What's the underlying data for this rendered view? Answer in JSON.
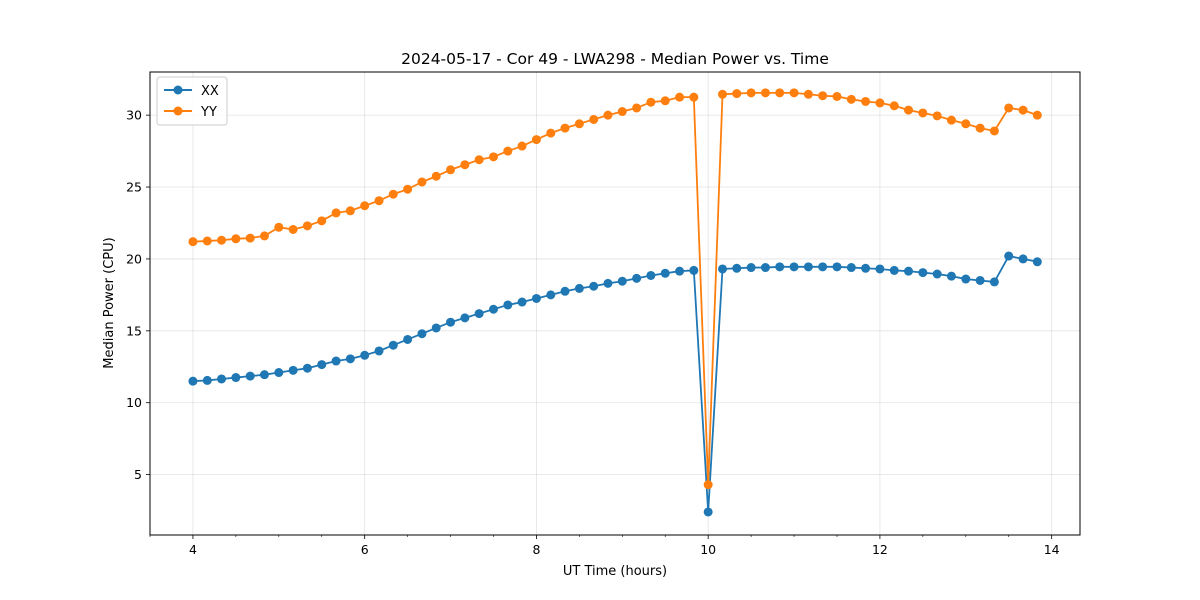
{
  "chart_data": {
    "type": "line",
    "title": "2024-05-17 - Cor 49 - LWA298 - Median Power vs. Time",
    "xlabel": "UT Time (hours)",
    "ylabel": "Median Power (CPU)",
    "xlim": [
      3.5,
      14.33
    ],
    "ylim": [
      0.8,
      33.0
    ],
    "xticks": [
      4,
      6,
      8,
      10,
      12,
      14
    ],
    "yticks": [
      5,
      10,
      15,
      20,
      25,
      30
    ],
    "grid": true,
    "legend": "upper-left",
    "series": [
      {
        "name": "XX",
        "color": "#1f77b4",
        "marker": "circle",
        "x": [
          4.0,
          4.167,
          4.333,
          4.5,
          4.667,
          4.833,
          5.0,
          5.167,
          5.333,
          5.5,
          5.667,
          5.833,
          6.0,
          6.167,
          6.333,
          6.5,
          6.667,
          6.833,
          7.0,
          7.167,
          7.333,
          7.5,
          7.667,
          7.833,
          8.0,
          8.167,
          8.333,
          8.5,
          8.667,
          8.833,
          9.0,
          9.167,
          9.333,
          9.5,
          9.667,
          9.833,
          10.0,
          10.167,
          10.333,
          10.5,
          10.667,
          10.833,
          11.0,
          11.167,
          11.333,
          11.5,
          11.667,
          11.833,
          12.0,
          12.167,
          12.333,
          12.5,
          12.667,
          12.833,
          13.0,
          13.167,
          13.333,
          13.5,
          13.667,
          13.833
        ],
        "y": [
          11.5,
          11.55,
          11.65,
          11.75,
          11.85,
          11.95,
          12.1,
          12.25,
          12.4,
          12.65,
          12.9,
          13.05,
          13.3,
          13.6,
          14.0,
          14.4,
          14.8,
          15.2,
          15.6,
          15.9,
          16.2,
          16.5,
          16.8,
          17.0,
          17.25,
          17.5,
          17.75,
          17.95,
          18.1,
          18.3,
          18.45,
          18.65,
          18.85,
          19.0,
          19.15,
          19.2,
          2.4,
          19.3,
          19.35,
          19.4,
          19.4,
          19.45,
          19.45,
          19.45,
          19.45,
          19.45,
          19.4,
          19.35,
          19.3,
          19.2,
          19.15,
          19.05,
          18.95,
          18.8,
          18.6,
          18.5,
          18.4,
          20.2,
          20.0,
          19.8
        ]
      },
      {
        "name": "YY",
        "color": "#ff7f0e",
        "marker": "circle",
        "x": [
          4.0,
          4.167,
          4.333,
          4.5,
          4.667,
          4.833,
          5.0,
          5.167,
          5.333,
          5.5,
          5.667,
          5.833,
          6.0,
          6.167,
          6.333,
          6.5,
          6.667,
          6.833,
          7.0,
          7.167,
          7.333,
          7.5,
          7.667,
          7.833,
          8.0,
          8.167,
          8.333,
          8.5,
          8.667,
          8.833,
          9.0,
          9.167,
          9.333,
          9.5,
          9.667,
          9.833,
          10.0,
          10.167,
          10.333,
          10.5,
          10.667,
          10.833,
          11.0,
          11.167,
          11.333,
          11.5,
          11.667,
          11.833,
          12.0,
          12.167,
          12.333,
          12.5,
          12.667,
          12.833,
          13.0,
          13.167,
          13.333,
          13.5,
          13.667,
          13.833
        ],
        "y": [
          21.2,
          21.25,
          21.3,
          21.4,
          21.45,
          21.6,
          22.2,
          22.05,
          22.3,
          22.65,
          23.2,
          23.35,
          23.7,
          24.05,
          24.5,
          24.85,
          25.35,
          25.75,
          26.2,
          26.55,
          26.9,
          27.1,
          27.5,
          27.85,
          28.3,
          28.75,
          29.1,
          29.4,
          29.7,
          30.0,
          30.25,
          30.5,
          30.9,
          31.0,
          31.25,
          31.25,
          4.3,
          31.45,
          31.5,
          31.55,
          31.55,
          31.55,
          31.55,
          31.45,
          31.35,
          31.3,
          31.1,
          30.95,
          30.85,
          30.65,
          30.35,
          30.15,
          29.95,
          29.65,
          29.4,
          29.1,
          28.9,
          30.5,
          30.35,
          30.0
        ]
      }
    ]
  }
}
